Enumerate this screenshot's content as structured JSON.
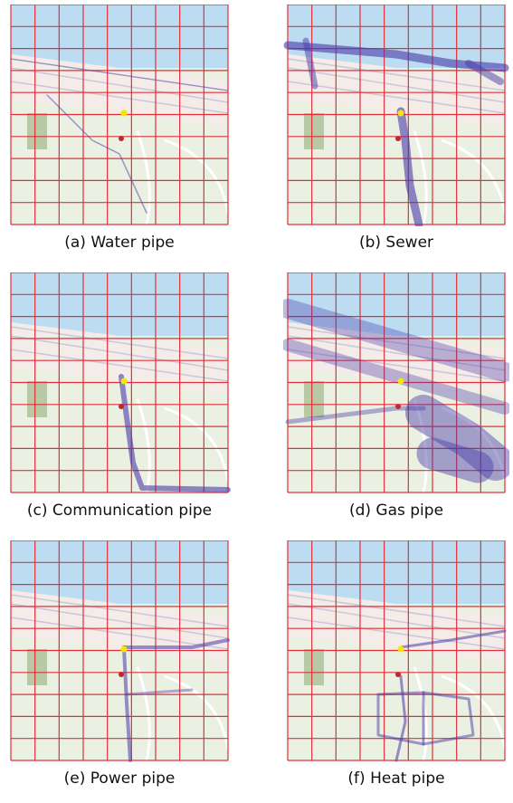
{
  "panels": [
    {
      "caption": "(a) Water pipe"
    },
    {
      "caption": "(b) Sewer"
    },
    {
      "caption": "(c) Communication pipe"
    },
    {
      "caption": "(d) Gas pipe"
    },
    {
      "caption": "(e) Power pipe"
    },
    {
      "caption": "(f) Heat pipe"
    }
  ]
}
